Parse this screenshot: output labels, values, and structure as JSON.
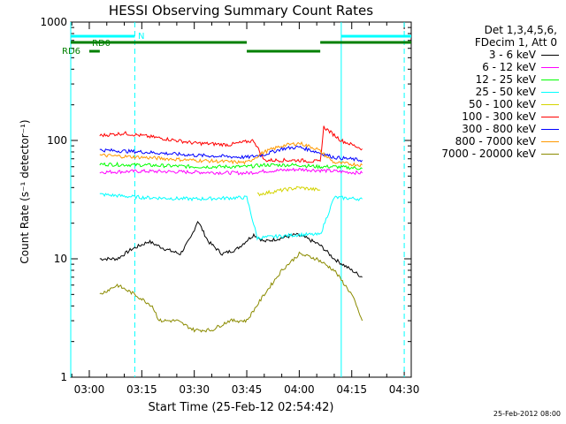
{
  "title": "HESSI Observing Summary Count Rates",
  "ylabel": "Count Rate (s⁻¹ detector⁻¹)",
  "xlabel": "Start Time (25-Feb-12 02:54:42)",
  "footer": "25-Feb-2012 08:00",
  "legend_header": [
    "Det 1,3,4,5,6,",
    "FDecim 1, Att 0"
  ],
  "colors": {
    "cyan": "#00ffff",
    "green": "#008000",
    "black": "#000000",
    "magenta": "#ff00ff",
    "lime": "#00ff00",
    "yellow": "#d4d400",
    "red": "#ff0000",
    "blue": "#0000ff",
    "orange": "#ff9900",
    "olive": "#8b8b00"
  },
  "flags": [
    {
      "label": "N",
      "color": "#00ffff"
    },
    {
      "label": "RD0",
      "color": "#008000"
    },
    {
      "label": "RD6",
      "color": "#008000"
    }
  ],
  "chart_data": {
    "type": "line",
    "title": "HESSI Observing Summary Count Rates",
    "xlabel": "Start Time (25-Feb-12 02:54:42)",
    "ylabel": "Count Rate (s⁻¹ detector⁻¹)",
    "yscale": "log",
    "ylim": [
      1,
      1000
    ],
    "xlim": [
      "02:54:42",
      "04:32:00"
    ],
    "x_ticks": [
      "03:00",
      "03:15",
      "03:30",
      "03:45",
      "04:00",
      "04:15",
      "04:30"
    ],
    "y_ticks": [
      "1",
      "10",
      "100",
      "1000"
    ],
    "series": [
      {
        "name": "3 - 6 keV",
        "color": "#000000",
        "x": [
          "03:03",
          "03:08",
          "03:12",
          "03:17",
          "03:22",
          "03:26",
          "03:29",
          "03:31",
          "03:34",
          "03:38",
          "03:42",
          "03:47",
          "03:50",
          "03:55",
          "03:59",
          "04:02",
          "04:06",
          "04:10",
          "04:15",
          "04:18"
        ],
        "values": [
          10,
          10,
          12,
          14,
          12,
          11,
          15,
          21,
          14,
          11,
          12,
          16,
          14,
          15,
          16,
          15,
          13,
          10,
          8,
          7
        ]
      },
      {
        "name": "6 - 12 keV",
        "color": "#ff00ff",
        "x": [
          "03:03",
          "03:15",
          "03:30",
          "03:45",
          "03:50",
          "04:00",
          "04:05",
          "04:10",
          "04:18"
        ],
        "values": [
          54,
          55,
          54,
          53,
          55,
          57,
          56,
          55,
          53
        ]
      },
      {
        "name": "12 - 25 keV",
        "color": "#00ff00",
        "x": [
          "03:03",
          "03:15",
          "03:30",
          "03:45",
          "03:50",
          "04:00",
          "04:05",
          "04:10",
          "04:18"
        ],
        "values": [
          63,
          62,
          60,
          60,
          62,
          62,
          60,
          60,
          58
        ]
      },
      {
        "name": "25 - 50 keV",
        "color": "#00ffff",
        "x": [
          "03:03",
          "03:15",
          "03:30",
          "03:45",
          "03:48",
          "04:00",
          "04:06",
          "04:10",
          "04:18"
        ],
        "values": [
          35,
          33,
          32,
          33,
          15,
          16,
          16,
          33,
          32
        ]
      },
      {
        "name": "50 - 100 keV",
        "color": "#d4d400",
        "x": [
          "03:48",
          "03:55",
          "04:00",
          "04:06"
        ],
        "values": [
          35,
          38,
          40,
          38
        ]
      },
      {
        "name": "100 - 300 keV",
        "color": "#ff0000",
        "x": [
          "03:03",
          "03:10",
          "03:20",
          "03:30",
          "03:40",
          "03:47",
          "03:50",
          "03:55",
          "04:00",
          "04:06",
          "04:07",
          "04:12",
          "04:18"
        ],
        "values": [
          110,
          115,
          105,
          95,
          92,
          100,
          68,
          68,
          68,
          66,
          130,
          100,
          85
        ]
      },
      {
        "name": "300 - 800 keV",
        "color": "#0000ff",
        "x": [
          "03:03",
          "03:15",
          "03:30",
          "03:45",
          "03:50",
          "03:55",
          "04:00",
          "04:05",
          "04:10",
          "04:18"
        ],
        "values": [
          83,
          80,
          75,
          72,
          76,
          85,
          88,
          80,
          72,
          68
        ]
      },
      {
        "name": "800 - 7000 keV",
        "color": "#ff9900",
        "x": [
          "03:03",
          "03:15",
          "03:30",
          "03:45",
          "03:50",
          "03:55",
          "04:00",
          "04:05",
          "04:10",
          "04:18"
        ],
        "values": [
          75,
          72,
          68,
          65,
          80,
          90,
          95,
          85,
          65,
          62
        ]
      },
      {
        "name": "7000 - 20000 keV",
        "color": "#8b8b00",
        "x": [
          "03:03",
          "03:08",
          "03:13",
          "03:18",
          "03:20",
          "03:25",
          "03:30",
          "03:35",
          "03:40",
          "03:45",
          "03:50",
          "03:55",
          "04:00",
          "04:05",
          "04:10",
          "04:15",
          "04:18"
        ],
        "values": [
          5,
          6,
          5,
          4,
          3,
          3,
          2.5,
          2.5,
          3,
          3,
          5,
          8,
          11,
          10,
          8,
          5,
          3
        ]
      }
    ],
    "flags": [
      {
        "label": "N",
        "segments": [
          [
            "02:54:42",
            "03:13"
          ],
          [
            "04:12",
            "04:32"
          ]
        ]
      },
      {
        "label": "RD0",
        "segments": [
          [
            "02:54:42",
            "03:45"
          ],
          [
            "04:06",
            "04:32"
          ]
        ]
      },
      {
        "label": "RD6",
        "segments": [
          [
            "03:00",
            "03:03"
          ],
          [
            "03:45",
            "04:06"
          ]
        ]
      }
    ],
    "vlines_solid": [
      "02:54:42",
      "04:12"
    ],
    "vlines_dashed": [
      "03:13",
      "04:30"
    ],
    "grid": false,
    "legend_position": "right"
  }
}
